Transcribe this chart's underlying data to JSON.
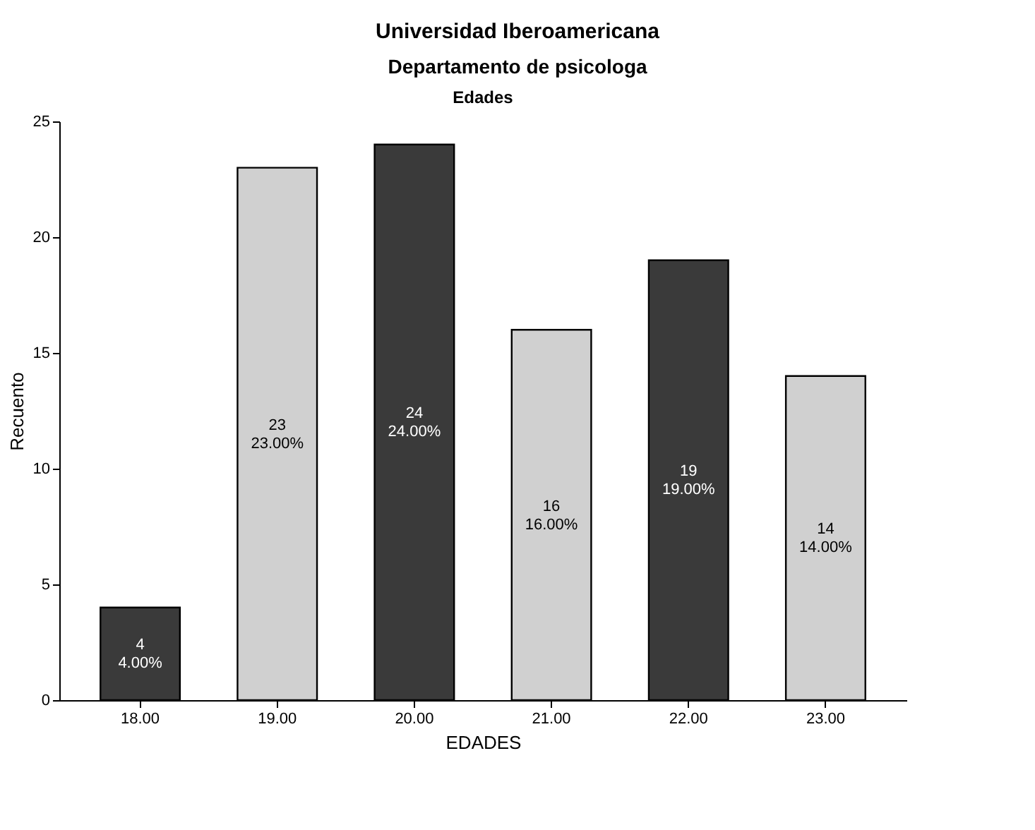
{
  "chart_data": {
    "type": "bar",
    "title": "Universidad Iberoamericana",
    "subtitle": "Departamento de psicologa",
    "annotations": [
      "Edades"
    ],
    "xlabel": "EDADES",
    "ylabel": "Recuento",
    "categories": [
      "18.00",
      "19.00",
      "20.00",
      "21.00",
      "22.00",
      "23.00"
    ],
    "values": [
      4,
      23,
      24,
      16,
      19,
      14
    ],
    "colors": [
      "#3a3a3a",
      "#d0d0d0",
      "#3a3a3a",
      "#d0d0d0",
      "#3a3a3a",
      "#d0d0d0"
    ],
    "value_labels": [
      "4\n4.00%",
      "23\n23.00%",
      "24\n24.00%",
      "16\n16.00%",
      "19\n19.00%",
      "14\n14.00%"
    ],
    "ylim": [
      0,
      25
    ],
    "yticks": [
      0,
      5,
      10,
      15,
      20,
      25
    ]
  }
}
